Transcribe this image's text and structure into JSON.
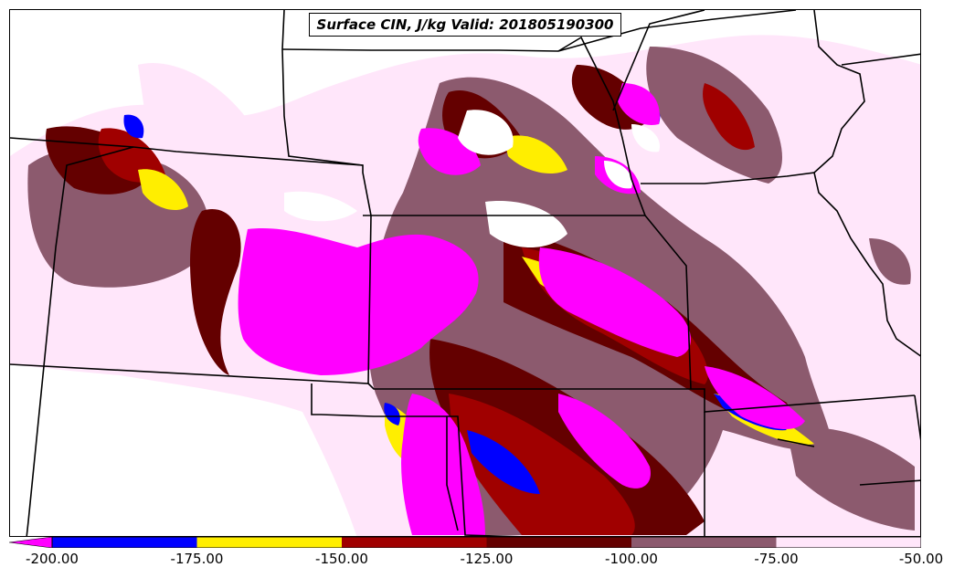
{
  "title": "Surface CIN, J/kg Valid: 201805190300",
  "colors": {
    "cin_lt_minus200": "#ff00ff",
    "cin_200_175": "#0000ff",
    "cin_175_150": "#ffee00",
    "cin_150_125": "#a00000",
    "cin_125_100": "#640000",
    "cin_100_75": "#8c5a6e",
    "cin_75_50": "#ffe6fa",
    "background": "#ffffff",
    "borders": "#000000"
  },
  "colorbar": {
    "ticks": [
      "-200.00",
      "-175.00",
      "-150.00",
      "-125.00",
      "-100.00",
      "-75.00",
      "-50.00"
    ],
    "extend": "min",
    "bins": [
      {
        "range": "-200 to -175",
        "color": "#0000ff"
      },
      {
        "range": "-175 to -150",
        "color": "#ffee00"
      },
      {
        "range": "-150 to -125",
        "color": "#a00000"
      },
      {
        "range": "-125 to -100",
        "color": "#640000"
      },
      {
        "range": "-100 to -75",
        "color": "#8c5a6e"
      },
      {
        "range": "-75 to -50",
        "color": "#ffe6fa"
      }
    ]
  }
}
